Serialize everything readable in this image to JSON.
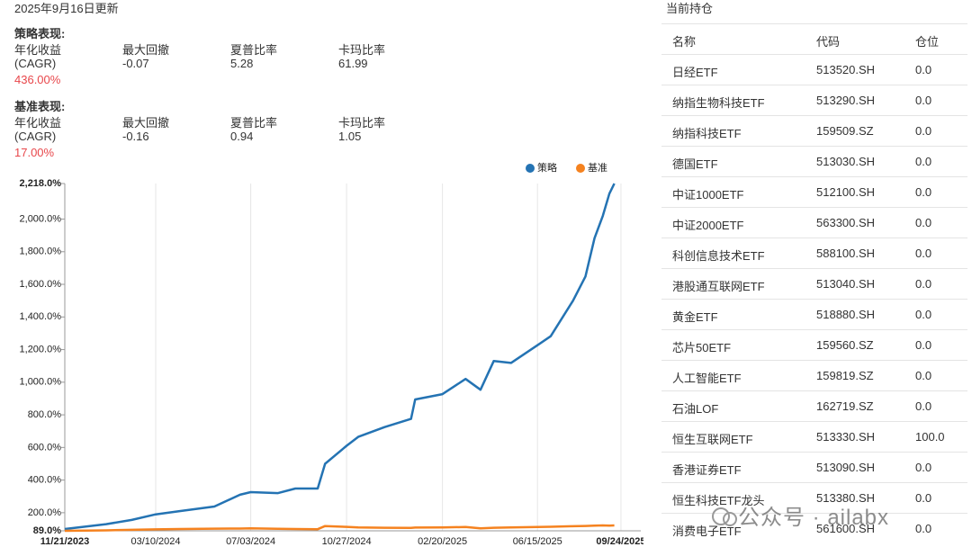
{
  "header": {
    "updated": "2025年9月16日更新"
  },
  "performance": [
    {
      "label": "策略表现:",
      "metrics": [
        {
          "name": "年化收益",
          "sub": "(CAGR)",
          "value": "436.00%"
        },
        {
          "name": "最大回撤",
          "value": "-0.07"
        },
        {
          "name": "夏普比率",
          "value": "5.28"
        },
        {
          "name": "卡玛比率",
          "value": "61.99"
        }
      ]
    },
    {
      "label": "基准表现:",
      "metrics": [
        {
          "name": "年化收益",
          "sub": "(CAGR)",
          "value": "17.00%"
        },
        {
          "name": "最大回撤",
          "value": "-0.16"
        },
        {
          "name": "夏普比率",
          "value": "0.94"
        },
        {
          "name": "卡玛比率",
          "value": "1.05"
        }
      ]
    }
  ],
  "chart_data": {
    "type": "line",
    "x": [
      "2023-11-21",
      "2024-01-10",
      "2024-02-10",
      "2024-03-10",
      "2024-04-08",
      "2024-05-20",
      "2024-06-20",
      "2024-07-03",
      "2024-08-05",
      "2024-08-26",
      "2024-09-22",
      "2024-10-01",
      "2024-10-27",
      "2024-11-10",
      "2024-12-12",
      "2025-01-13",
      "2025-01-18",
      "2025-02-20",
      "2025-03-20",
      "2025-04-07",
      "2025-04-23",
      "2025-05-14",
      "2025-06-15",
      "2025-07-01",
      "2025-07-28",
      "2025-08-12",
      "2025-08-23",
      "2025-09-02",
      "2025-09-10",
      "2025-09-16"
    ],
    "series": [
      {
        "name": "策略",
        "color": "#2473b3",
        "values": [
          100,
          130,
          156,
          190,
          210,
          238,
          310,
          326,
          320,
          348,
          348,
          500,
          610,
          665,
          725,
          775,
          894,
          927,
          1020,
          954,
          1130,
          1118,
          1227,
          1282,
          1500,
          1648,
          1883,
          2020,
          2156,
          2218
        ]
      },
      {
        "name": "基准",
        "color": "#f5821f",
        "values": [
          89,
          92,
          95,
          98,
          100,
          102,
          103,
          104,
          101,
          100,
          99,
          118,
          113,
          110,
          108,
          107,
          109,
          110,
          112,
          104,
          108,
          110,
          112,
          114,
          117,
          119,
          121,
          122,
          121,
          122
        ]
      }
    ],
    "xlim": [
      "2023-11-21",
      "2025-10-18"
    ],
    "xticks": [
      {
        "value": "2023-11-21",
        "label": "11/21/2023"
      },
      {
        "value": "2024-03-10",
        "label": "03/10/2024"
      },
      {
        "value": "2024-07-03",
        "label": "07/03/2024"
      },
      {
        "value": "2024-10-27",
        "label": "10/27/2024"
      },
      {
        "value": "2025-02-20",
        "label": "02/20/2025"
      },
      {
        "value": "2025-06-15",
        "label": "06/15/2025"
      },
      {
        "value": "2025-09-24",
        "label": "09/24/2025"
      }
    ],
    "ylim": [
      89,
      2218
    ],
    "yticks": [
      {
        "value": 89,
        "label": "89.0%"
      },
      {
        "value": 200,
        "label": "200.0%"
      },
      {
        "value": 400,
        "label": "400.0%"
      },
      {
        "value": 600,
        "label": "600.0%"
      },
      {
        "value": 800,
        "label": "800.0%"
      },
      {
        "value": 1000,
        "label": "1,000.0%"
      },
      {
        "value": 1200,
        "label": "1,200.0%"
      },
      {
        "value": 1400,
        "label": "1,400.0%"
      },
      {
        "value": 1600,
        "label": "1,600.0%"
      },
      {
        "value": 1800,
        "label": "1,800.0%"
      },
      {
        "value": 2000,
        "label": "2,000.0%"
      },
      {
        "value": 2218,
        "label": "2,218.0%"
      }
    ],
    "grid": "x",
    "legend": "top-right"
  },
  "holdings": {
    "title": "当前持仓",
    "columns": [
      "名称",
      "代码",
      "仓位"
    ],
    "rows": [
      [
        "日经ETF",
        "513520.SH",
        "0.0"
      ],
      [
        "纳指生物科技ETF",
        "513290.SH",
        "0.0"
      ],
      [
        "纳指科技ETF",
        "159509.SZ",
        "0.0"
      ],
      [
        "德国ETF",
        "513030.SH",
        "0.0"
      ],
      [
        "中证1000ETF",
        "512100.SH",
        "0.0"
      ],
      [
        "中证2000ETF",
        "563300.SH",
        "0.0"
      ],
      [
        "科创信息技术ETF",
        "588100.SH",
        "0.0"
      ],
      [
        "港股通互联网ETF",
        "513040.SH",
        "0.0"
      ],
      [
        "黄金ETF",
        "518880.SH",
        "0.0"
      ],
      [
        "芯片50ETF",
        "159560.SZ",
        "0.0"
      ],
      [
        "人工智能ETF",
        "159819.SZ",
        "0.0"
      ],
      [
        "石油LOF",
        "162719.SZ",
        "0.0"
      ],
      [
        "恒生互联网ETF",
        "513330.SH",
        "100.0"
      ],
      [
        "香港证券ETF",
        "513090.SH",
        "0.0"
      ],
      [
        "恒生科技ETF龙头",
        "513380.SH",
        "0.0"
      ],
      [
        "消费电子ETF",
        "561600.SH",
        "0.0"
      ]
    ]
  },
  "watermark": "公众号 · ailabx"
}
